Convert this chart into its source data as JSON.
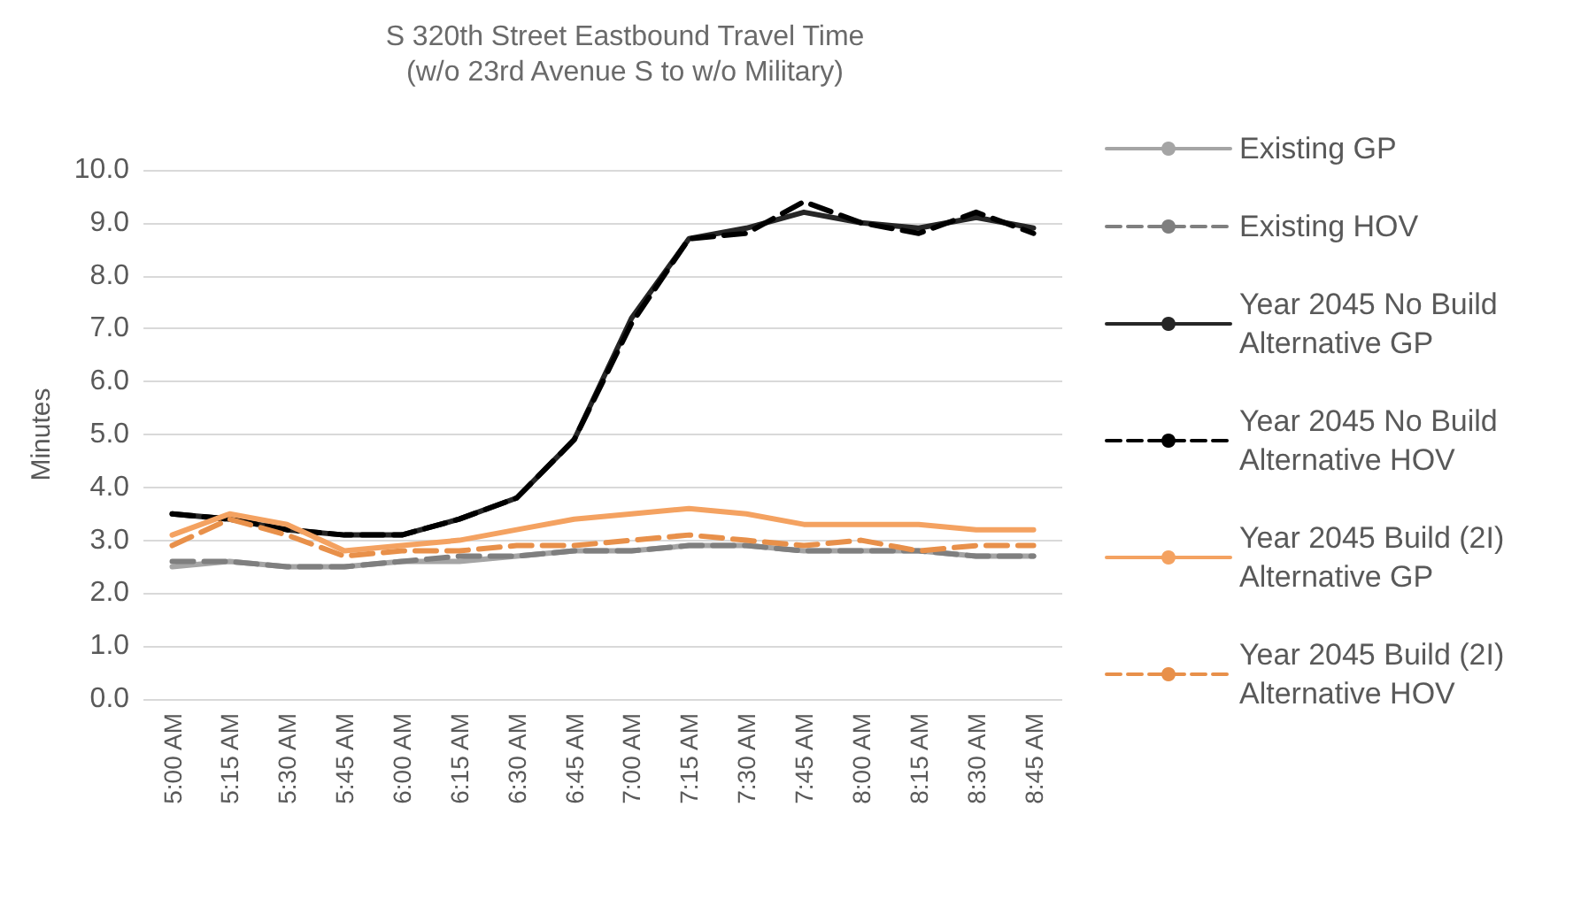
{
  "chart_data": {
    "type": "line",
    "title": "S 320th Street Eastbound Travel Time",
    "subtitle": "(w/o 23rd Avenue S to w/o Military)",
    "ylabel": "Minutes",
    "categories": [
      "5:00 AM",
      "5:15 AM",
      "5:30 AM",
      "5:45 AM",
      "6:00 AM",
      "6:15 AM",
      "6:30 AM",
      "6:45 AM",
      "7:00 AM",
      "7:15 AM",
      "7:30 AM",
      "7:45 AM",
      "8:00 AM",
      "8:15 AM",
      "8:30 AM",
      "8:45 AM"
    ],
    "series": [
      {
        "name": "Existing GP",
        "color": "#a5a5a5",
        "line_style": "solid",
        "values": [
          2.5,
          2.6,
          2.5,
          2.5,
          2.6,
          2.6,
          2.7,
          2.8,
          2.8,
          2.9,
          2.9,
          2.8,
          2.8,
          2.8,
          2.7,
          2.7
        ]
      },
      {
        "name": "Existing HOV",
        "color": "#7f7f7f",
        "line_style": "dashed",
        "values": [
          2.6,
          2.6,
          2.5,
          2.5,
          2.6,
          2.7,
          2.7,
          2.8,
          2.8,
          2.9,
          2.9,
          2.8,
          2.8,
          2.8,
          2.7,
          2.7
        ]
      },
      {
        "name": "Year 2045 No Build Alternative GP",
        "color": "#262626",
        "line_style": "solid",
        "values": [
          3.5,
          3.4,
          3.2,
          3.1,
          3.1,
          3.4,
          3.8,
          4.9,
          7.2,
          8.7,
          8.9,
          9.2,
          9.0,
          8.9,
          9.1,
          8.9
        ]
      },
      {
        "name": "Year 2045 No Build Alternative HOV",
        "color": "#000000",
        "line_style": "dashed",
        "values": [
          3.5,
          3.4,
          3.2,
          3.1,
          3.1,
          3.4,
          3.8,
          4.9,
          7.1,
          8.7,
          8.8,
          9.4,
          9.0,
          8.8,
          9.2,
          8.8
        ]
      },
      {
        "name": "Year 2045 Build (2I) Alternative GP",
        "color": "#f4a261",
        "line_style": "solid",
        "values": [
          3.1,
          3.5,
          3.3,
          2.8,
          2.9,
          3.0,
          3.2,
          3.4,
          3.5,
          3.6,
          3.5,
          3.3,
          3.3,
          3.3,
          3.2,
          3.2
        ]
      },
      {
        "name": "Year 2045 Build (2I) Alternative HOV",
        "color": "#e8904a",
        "line_style": "dashed",
        "values": [
          2.9,
          3.4,
          3.1,
          2.7,
          2.8,
          2.8,
          2.9,
          2.9,
          3.0,
          3.1,
          3.0,
          2.9,
          3.0,
          2.8,
          2.9,
          2.9
        ]
      }
    ],
    "ylim": [
      0,
      10
    ],
    "yticks": [
      {
        "value": 0,
        "label": "0.0"
      },
      {
        "value": 1,
        "label": "1.0"
      },
      {
        "value": 2,
        "label": "2.0"
      },
      {
        "value": 3,
        "label": "3.0"
      },
      {
        "value": 4,
        "label": "4.0"
      },
      {
        "value": 5,
        "label": "5.0"
      },
      {
        "value": 6,
        "label": "6.0"
      },
      {
        "value": 7,
        "label": "7.0"
      },
      {
        "value": 8,
        "label": "8.0"
      },
      {
        "value": 9,
        "label": "9.0"
      },
      {
        "value": 10,
        "label": "10.0"
      }
    ],
    "grid": "y",
    "legend": "right",
    "marker": "none"
  }
}
